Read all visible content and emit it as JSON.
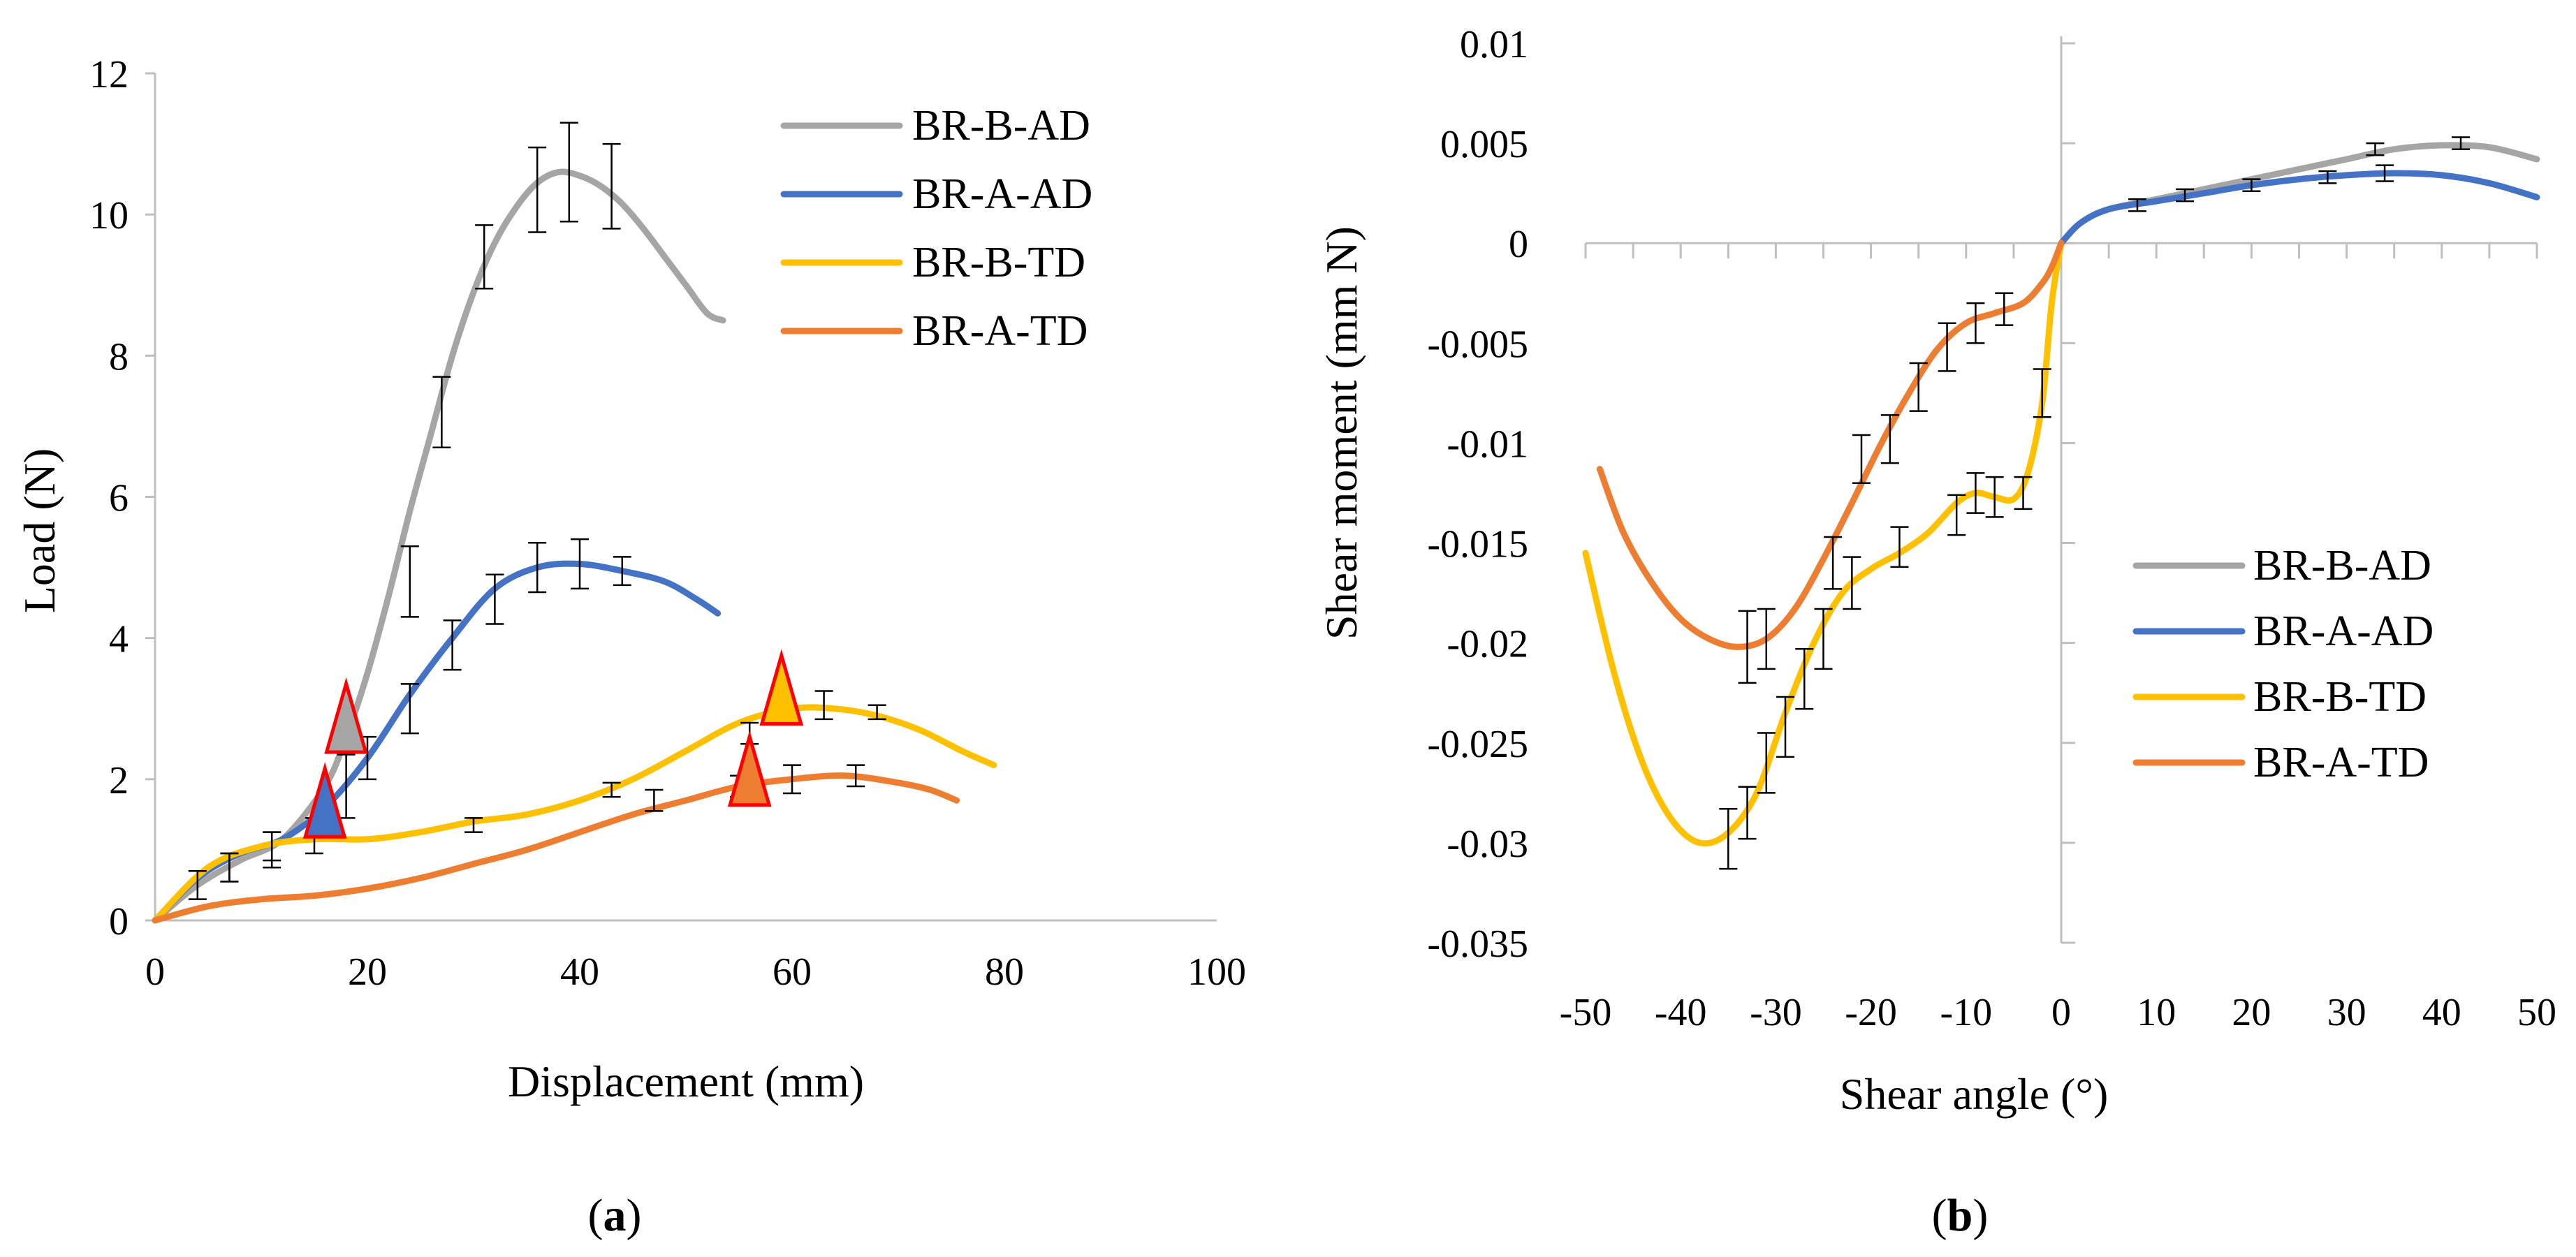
{
  "chart_data": [
    {
      "type": "line",
      "panel_label": "a",
      "xlabel": "Displacement (mm)",
      "ylabel": "Load (N)",
      "xlim": [
        0,
        100
      ],
      "ylim": [
        0,
        12
      ],
      "xticks": [
        0,
        20,
        40,
        60,
        80,
        100
      ],
      "yticks": [
        0,
        2,
        4,
        6,
        8,
        10,
        12
      ],
      "tick_labels_x": [
        "0",
        "20",
        "40",
        "60",
        "80",
        "100"
      ],
      "tick_labels_y": [
        "0",
        "2",
        "4",
        "6",
        "8",
        "10",
        "12"
      ],
      "legend_position": "top-right",
      "series": [
        {
          "name": "BR-B-AD",
          "color": "#A5A5A5",
          "x": [
            0,
            4,
            8,
            12,
            16,
            18,
            20,
            22,
            24,
            26,
            28,
            30,
            32,
            34,
            36,
            38,
            40,
            42,
            44,
            46,
            48,
            50,
            52,
            53.5
          ],
          "y": [
            0,
            0.5,
            0.85,
            1.15,
            1.9,
            2.6,
            3.5,
            4.6,
            5.8,
            6.9,
            8.0,
            8.9,
            9.6,
            10.1,
            10.45,
            10.6,
            10.55,
            10.4,
            10.15,
            9.8,
            9.4,
            9.0,
            8.6,
            8.5
          ],
          "error_x": [
            4,
            7,
            11,
            15,
            18,
            24,
            27,
            31,
            36,
            39,
            43
          ],
          "error_y": [
            0.5,
            0.75,
            1.0,
            1.2,
            1.9,
            4.8,
            7.2,
            9.4,
            10.35,
            10.6,
            10.4
          ],
          "error_size": [
            0.2,
            0.2,
            0.25,
            0.25,
            0.45,
            0.5,
            0.5,
            0.45,
            0.6,
            0.7,
            0.6
          ]
        },
        {
          "name": "BR-A-AD",
          "color": "#4472C4",
          "x": [
            0,
            4,
            8,
            12,
            16,
            20,
            24,
            28,
            32,
            36,
            40,
            44,
            48,
            51,
            53
          ],
          "y": [
            0,
            0.6,
            0.95,
            1.15,
            1.6,
            2.3,
            3.2,
            4.0,
            4.7,
            5.0,
            5.05,
            4.95,
            4.8,
            4.55,
            4.35
          ],
          "error_x": [
            7,
            11,
            20,
            24,
            28,
            32,
            36,
            40,
            44
          ],
          "error_y": [
            0.75,
            1.05,
            2.3,
            3.0,
            3.9,
            4.55,
            5.0,
            5.05,
            4.95
          ],
          "error_size": [
            0.2,
            0.2,
            0.3,
            0.35,
            0.35,
            0.35,
            0.35,
            0.35,
            0.2
          ]
        },
        {
          "name": "BR-B-TD",
          "color": "#FFC000",
          "x": [
            0,
            5,
            10,
            15,
            20,
            25,
            30,
            35,
            40,
            45,
            50,
            55,
            60,
            64,
            68,
            72,
            76,
            79
          ],
          "y": [
            0,
            0.75,
            1.05,
            1.15,
            1.15,
            1.25,
            1.4,
            1.5,
            1.7,
            2.0,
            2.4,
            2.8,
            3.0,
            3.0,
            2.9,
            2.7,
            2.4,
            2.2
          ],
          "error_x": [
            30,
            56,
            63,
            68
          ],
          "error_y": [
            1.35,
            2.65,
            3.05,
            2.95
          ],
          "error_size": [
            0.1,
            0.15,
            0.2,
            0.1
          ]
        },
        {
          "name": "BR-A-TD",
          "color": "#ED7D31",
          "x": [
            0,
            5,
            10,
            15,
            20,
            25,
            30,
            35,
            40,
            45,
            50,
            55,
            60,
            65,
            70,
            73,
            75.5
          ],
          "y": [
            0,
            0.2,
            0.3,
            0.35,
            0.45,
            0.6,
            0.8,
            1.0,
            1.25,
            1.5,
            1.7,
            1.9,
            2.0,
            2.05,
            1.95,
            1.85,
            1.7
          ],
          "error_x": [
            43,
            47,
            55,
            60,
            66
          ],
          "error_y": [
            1.85,
            1.7,
            1.9,
            2.0,
            2.05
          ],
          "error_size": [
            0.1,
            0.15,
            0.15,
            0.2,
            0.15
          ]
        }
      ],
      "markers": [
        {
          "x": 18,
          "y": 2.8,
          "fill": "#A5A5A5",
          "stroke": "#FF0000"
        },
        {
          "x": 16,
          "y": 1.6,
          "fill": "#4472C4",
          "stroke": "#FF0000"
        },
        {
          "x": 59,
          "y": 3.2,
          "fill": "#FFC000",
          "stroke": "#FF0000"
        },
        {
          "x": 56,
          "y": 2.05,
          "fill": "#ED7D31",
          "stroke": "#FF0000"
        }
      ]
    },
    {
      "type": "line",
      "panel_label": "b",
      "xlabel": "Shear angle (°)",
      "ylabel": "Shear moment (mm N)",
      "xlim": [
        -50,
        50
      ],
      "ylim": [
        -0.035,
        0.01
      ],
      "xticks": [
        -50,
        -40,
        -30,
        -20,
        -10,
        0,
        10,
        20,
        30,
        40,
        50
      ],
      "yticks": [
        0.01,
        0.005,
        0,
        -0.005,
        -0.01,
        -0.015,
        -0.02,
        -0.025,
        -0.03,
        -0.035
      ],
      "tick_labels_x": [
        "-50",
        "-40",
        "-30",
        "-20",
        "-10",
        "0",
        "10",
        "20",
        "30",
        "40",
        "50"
      ],
      "tick_labels_y": [
        "0.01",
        "0.005",
        "0",
        "-0.005",
        "-0.01",
        "-0.015",
        "-0.02",
        "-0.025",
        "-0.03",
        "-0.035"
      ],
      "legend_position": "bottom-right",
      "series": [
        {
          "name": "BR-B-AD",
          "color": "#A5A5A5",
          "x": [
            0,
            2,
            5,
            10,
            15,
            20,
            25,
            30,
            35,
            40,
            45,
            50
          ],
          "y": [
            0,
            0.001,
            0.0017,
            0.0022,
            0.0027,
            0.0032,
            0.0037,
            0.0042,
            0.0047,
            0.0049,
            0.0048,
            0.0042
          ],
          "error_x": [
            33,
            42
          ],
          "error_y": [
            0.0047,
            0.005
          ],
          "error_size": [
            0.0003,
            0.0003
          ]
        },
        {
          "name": "BR-A-AD",
          "color": "#4472C4",
          "x": [
            0,
            2,
            5,
            10,
            15,
            20,
            25,
            30,
            35,
            40,
            45,
            50
          ],
          "y": [
            0,
            0.001,
            0.0017,
            0.0021,
            0.0025,
            0.0029,
            0.0032,
            0.0034,
            0.0035,
            0.0034,
            0.003,
            0.0023
          ],
          "error_x": [
            8,
            13,
            20,
            28,
            34
          ],
          "error_y": [
            0.0019,
            0.0024,
            0.0029,
            0.0033,
            0.0035
          ],
          "error_size": [
            0.0003,
            0.0003,
            0.0003,
            0.0003,
            0.0004
          ]
        },
        {
          "name": "BR-B-TD",
          "color": "#FFC000",
          "x": [
            -50,
            -47,
            -44,
            -41,
            -38,
            -35,
            -32,
            -29,
            -26,
            -23,
            -20,
            -17,
            -14,
            -11,
            -9,
            -7,
            -5,
            -3.5,
            -2,
            -1,
            0
          ],
          "y": [
            -0.0155,
            -0.0215,
            -0.026,
            -0.0288,
            -0.03,
            -0.0295,
            -0.0275,
            -0.0235,
            -0.02,
            -0.0175,
            -0.0163,
            -0.0155,
            -0.0145,
            -0.013,
            -0.0125,
            -0.0127,
            -0.0128,
            -0.0115,
            -0.008,
            -0.003,
            0
          ],
          "error_x": [
            -35,
            -33,
            -31,
            -29,
            -27,
            -25,
            -22,
            -17,
            -11,
            -9,
            -7,
            -4,
            -2
          ],
          "error_y": [
            -0.0298,
            -0.0285,
            -0.026,
            -0.0242,
            -0.0218,
            -0.0198,
            -0.017,
            -0.0152,
            -0.0136,
            -0.0125,
            -0.0127,
            -0.0125,
            -0.0075
          ],
          "error_size": [
            0.0015,
            0.0013,
            0.0015,
            0.0015,
            0.0015,
            0.0015,
            0.0013,
            0.001,
            0.001,
            0.001,
            0.001,
            0.0008,
            0.0012
          ]
        },
        {
          "name": "BR-A-TD",
          "color": "#ED7D31",
          "x": [
            -48.5,
            -46,
            -43,
            -40,
            -37,
            -34,
            -31,
            -28,
            -25,
            -22,
            -19,
            -16,
            -13,
            -10,
            -7,
            -4,
            -2,
            -1,
            0
          ],
          "y": [
            -0.0113,
            -0.0145,
            -0.017,
            -0.0188,
            -0.0198,
            -0.0202,
            -0.0198,
            -0.0183,
            -0.0158,
            -0.013,
            -0.0101,
            -0.0075,
            -0.0053,
            -0.004,
            -0.0035,
            -0.003,
            -0.002,
            -0.0012,
            0
          ],
          "error_x": [
            -33,
            -31,
            -24,
            -21,
            -18,
            -15,
            -12,
            -9,
            -6
          ],
          "error_y": [
            -0.0202,
            -0.0198,
            -0.016,
            -0.0108,
            -0.0098,
            -0.0072,
            -0.0052,
            -0.004,
            -0.0033
          ],
          "error_size": [
            0.0018,
            0.0015,
            0.0013,
            0.0012,
            0.0012,
            0.0012,
            0.0012,
            0.001,
            0.0008
          ]
        }
      ]
    }
  ]
}
